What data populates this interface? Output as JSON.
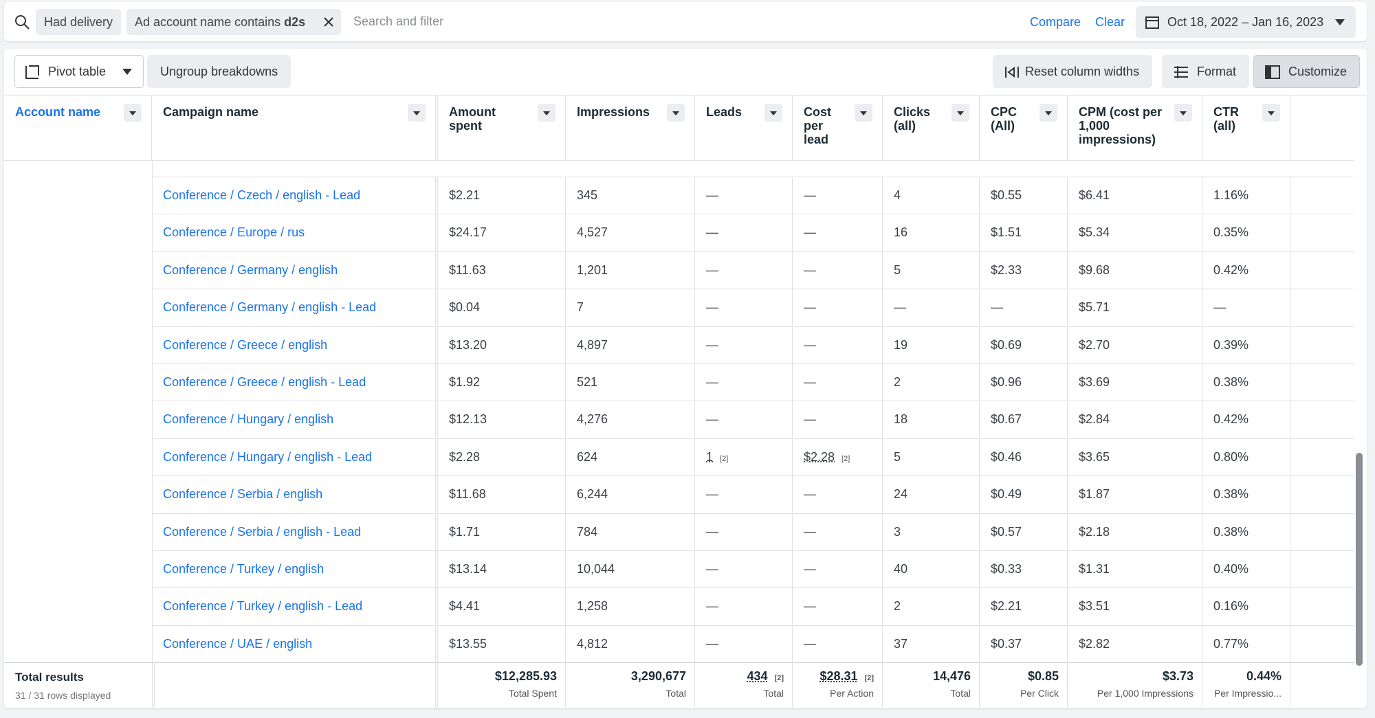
{
  "filter_bar": {
    "chips": [
      "Had delivery"
    ],
    "account_chip": {
      "prefix": "Ad account name contains",
      "value": "d2s"
    },
    "search_placeholder": "Search and filter",
    "compare": "Compare",
    "clear": "Clear",
    "date_range": "Oct 18, 2022 – Jan 16, 2023"
  },
  "toolbar": {
    "pivot": "Pivot table",
    "ungroup": "Ungroup breakdowns",
    "reset": "Reset column widths",
    "format": "Format",
    "customize": "Customize"
  },
  "table": {
    "columns": [
      "Account name",
      "Campaign name",
      "Amount spent",
      "Impressions",
      "Leads",
      "Cost per lead",
      "Clicks (all)",
      "CPC (All)",
      "CPM (cost per 1,000 impressions)",
      "CTR (all)"
    ],
    "rows": [
      [
        "Conference / Czech / english - Lead",
        "$2.21",
        "345",
        "—",
        "—",
        "4",
        "$0.55",
        "$6.41",
        "1.16%"
      ],
      [
        "Conference / Europe / rus",
        "$24.17",
        "4,527",
        "—",
        "—",
        "16",
        "$1.51",
        "$5.34",
        "0.35%"
      ],
      [
        "Conference / Germany / english",
        "$11.63",
        "1,201",
        "—",
        "—",
        "5",
        "$2.33",
        "$9.68",
        "0.42%"
      ],
      [
        "Conference / Germany / english - Lead",
        "$0.04",
        "7",
        "—",
        "—",
        "—",
        "—",
        "$5.71",
        "—"
      ],
      [
        "Conference / Greece / english",
        "$13.20",
        "4,897",
        "—",
        "—",
        "19",
        "$0.69",
        "$2.70",
        "0.39%"
      ],
      [
        "Conference / Greece / english - Lead",
        "$1.92",
        "521",
        "—",
        "—",
        "2",
        "$0.96",
        "$3.69",
        "0.38%"
      ],
      [
        "Conference / Hungary / english",
        "$12.13",
        "4,276",
        "—",
        "—",
        "18",
        "$0.67",
        "$2.84",
        "0.42%"
      ],
      [
        "Conference / Hungary / english - Lead",
        "$2.28",
        "624",
        {
          "text": "1",
          "note": "[2]"
        },
        {
          "text": "$2.28",
          "note": "[2]"
        },
        "5",
        "$0.46",
        "$3.65",
        "0.80%"
      ],
      [
        "Conference / Serbia / english",
        "$11.68",
        "6,244",
        "—",
        "—",
        "24",
        "$0.49",
        "$1.87",
        "0.38%"
      ],
      [
        "Conference / Serbia / english - Lead",
        "$1.71",
        "784",
        "—",
        "—",
        "3",
        "$0.57",
        "$2.18",
        "0.38%"
      ],
      [
        "Conference / Turkey / english",
        "$13.14",
        "10,044",
        "—",
        "—",
        "40",
        "$0.33",
        "$1.31",
        "0.40%"
      ],
      [
        "Conference / Turkey / english - Lead",
        "$4.41",
        "1,258",
        "—",
        "—",
        "2",
        "$2.21",
        "$3.51",
        "0.16%"
      ],
      [
        "Conference / UAE / english",
        "$13.55",
        "4,812",
        "—",
        "—",
        "37",
        "$0.37",
        "$2.82",
        "0.77%"
      ]
    ],
    "totals": {
      "label": "Total results",
      "sublabel": "31 / 31 rows displayed",
      "cells": [
        {
          "text": "$12,285.93",
          "caption": "Total Spent"
        },
        {
          "text": "3,290,677",
          "caption": "Total"
        },
        {
          "text": "434",
          "note": "[2]",
          "caption": "Total"
        },
        {
          "text": "$28.31",
          "note": "[2]",
          "caption": "Per Action"
        },
        {
          "text": "14,476",
          "caption": "Total"
        },
        {
          "text": "$0.85",
          "caption": "Per Click"
        },
        {
          "text": "$3.73",
          "caption": "Per 1,000 Impressions"
        },
        {
          "text": "0.44%",
          "caption": "Per Impressio..."
        }
      ]
    }
  }
}
